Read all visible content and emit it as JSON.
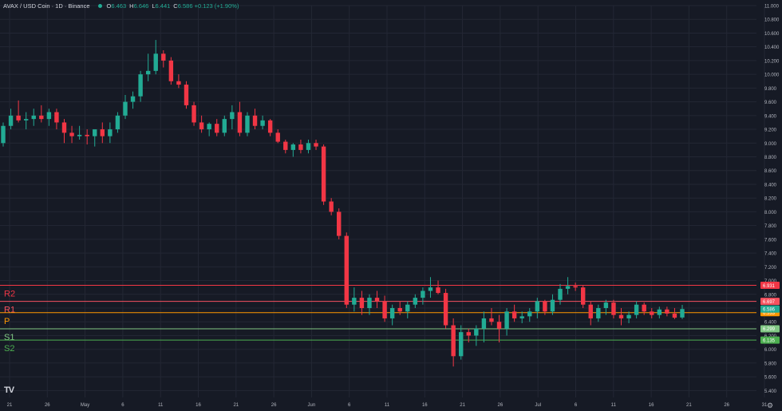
{
  "header": {
    "symbol": "AVAX / USD Coin · 1D · Binance",
    "o_label": "O",
    "o_value": "6.463",
    "h_label": "H",
    "h_value": "6.646",
    "l_label": "L",
    "l_value": "6.441",
    "c_label": "C",
    "c_value": "6.586 +0.123 (+1.90%)"
  },
  "icons": {
    "logo": "tradingview-logo-icon",
    "settings": "gear-icon"
  },
  "logo_text": "TV",
  "colors": {
    "up": "#22ab94",
    "down": "#f23645",
    "background": "#161a25",
    "grid": "#232734",
    "text": "#b2b5be"
  },
  "chart_data": {
    "type": "candlestick",
    "ylim": [
      5.3,
      11.0
    ],
    "y_ticks": [
      "11.000",
      "10.800",
      "10.600",
      "10.400",
      "10.200",
      "10.000",
      "9.800",
      "9.600",
      "9.400",
      "9.200",
      "9.000",
      "8.800",
      "8.600",
      "8.400",
      "8.200",
      "8.000",
      "7.800",
      "7.600",
      "7.400",
      "7.200",
      "7.000",
      "6.800",
      "6.600",
      "6.400",
      "6.200",
      "6.000",
      "5.800",
      "5.600",
      "5.400"
    ],
    "x_ticks": [
      "21",
      "26",
      "May",
      "6",
      "11",
      "16",
      "21",
      "26",
      "Jun",
      "6",
      "11",
      "16",
      "21",
      "26",
      "Jul",
      "6",
      "11",
      "16",
      "21",
      "26",
      "31"
    ],
    "levels": [
      {
        "label": "R2",
        "value": 6.931,
        "value_text": "6.931",
        "color": "#f23645"
      },
      {
        "label": "R1",
        "value": 6.697,
        "value_text": "6.697",
        "color": "#f7525f"
      },
      {
        "label": "P",
        "value": 6.533,
        "value_text": "6.533",
        "color": "#ff9800"
      },
      {
        "label": "S1",
        "value": 6.299,
        "value_text": "6.299",
        "color": "#81c784"
      },
      {
        "label": "S2",
        "value": 6.135,
        "value_text": "6.135",
        "color": "#4caf50"
      }
    ],
    "last_price": {
      "value": 6.586,
      "value_text": "6.586"
    },
    "candles": [
      {
        "o": 9.0,
        "h": 9.3,
        "l": 8.95,
        "c": 9.25
      },
      {
        "o": 9.25,
        "h": 9.5,
        "l": 9.2,
        "c": 9.4
      },
      {
        "o": 9.4,
        "h": 9.62,
        "l": 9.3,
        "c": 9.33
      },
      {
        "o": 9.33,
        "h": 9.45,
        "l": 9.2,
        "c": 9.35
      },
      {
        "o": 9.35,
        "h": 9.5,
        "l": 9.25,
        "c": 9.4
      },
      {
        "o": 9.4,
        "h": 9.55,
        "l": 9.3,
        "c": 9.35
      },
      {
        "o": 9.35,
        "h": 9.5,
        "l": 9.25,
        "c": 9.45
      },
      {
        "o": 9.45,
        "h": 9.5,
        "l": 9.2,
        "c": 9.3
      },
      {
        "o": 9.3,
        "h": 9.35,
        "l": 9.0,
        "c": 9.15
      },
      {
        "o": 9.15,
        "h": 9.25,
        "l": 9.0,
        "c": 9.1
      },
      {
        "o": 9.1,
        "h": 9.25,
        "l": 9.05,
        "c": 9.12
      },
      {
        "o": 9.12,
        "h": 9.2,
        "l": 8.98,
        "c": 9.1
      },
      {
        "o": 9.1,
        "h": 9.2,
        "l": 8.95,
        "c": 9.2
      },
      {
        "o": 9.2,
        "h": 9.3,
        "l": 9.0,
        "c": 9.1
      },
      {
        "o": 9.1,
        "h": 9.3,
        "l": 9.0,
        "c": 9.2
      },
      {
        "o": 9.2,
        "h": 9.45,
        "l": 9.15,
        "c": 9.4
      },
      {
        "o": 9.4,
        "h": 9.7,
        "l": 9.35,
        "c": 9.6
      },
      {
        "o": 9.6,
        "h": 9.75,
        "l": 9.5,
        "c": 9.68
      },
      {
        "o": 9.68,
        "h": 10.05,
        "l": 9.6,
        "c": 10.0
      },
      {
        "o": 10.0,
        "h": 10.3,
        "l": 9.9,
        "c": 10.05
      },
      {
        "o": 10.05,
        "h": 10.5,
        "l": 10.0,
        "c": 10.3
      },
      {
        "o": 10.3,
        "h": 10.35,
        "l": 10.1,
        "c": 10.2
      },
      {
        "o": 10.2,
        "h": 10.25,
        "l": 9.85,
        "c": 9.9
      },
      {
        "o": 9.9,
        "h": 10.0,
        "l": 9.8,
        "c": 9.85
      },
      {
        "o": 9.85,
        "h": 9.9,
        "l": 9.5,
        "c": 9.55
      },
      {
        "o": 9.55,
        "h": 9.6,
        "l": 9.25,
        "c": 9.3
      },
      {
        "o": 9.3,
        "h": 9.4,
        "l": 9.15,
        "c": 9.2
      },
      {
        "o": 9.2,
        "h": 9.3,
        "l": 9.1,
        "c": 9.28
      },
      {
        "o": 9.28,
        "h": 9.35,
        "l": 9.1,
        "c": 9.15
      },
      {
        "o": 9.15,
        "h": 9.4,
        "l": 9.1,
        "c": 9.35
      },
      {
        "o": 9.35,
        "h": 9.55,
        "l": 9.2,
        "c": 9.45
      },
      {
        "o": 9.45,
        "h": 9.6,
        "l": 9.1,
        "c": 9.15
      },
      {
        "o": 9.15,
        "h": 9.45,
        "l": 9.1,
        "c": 9.4
      },
      {
        "o": 9.4,
        "h": 9.5,
        "l": 9.2,
        "c": 9.25
      },
      {
        "o": 9.25,
        "h": 9.4,
        "l": 9.2,
        "c": 9.33
      },
      {
        "o": 9.33,
        "h": 9.35,
        "l": 9.1,
        "c": 9.15
      },
      {
        "o": 9.15,
        "h": 9.2,
        "l": 9.0,
        "c": 9.02
      },
      {
        "o": 9.02,
        "h": 9.05,
        "l": 8.85,
        "c": 8.9
      },
      {
        "o": 8.9,
        "h": 9.0,
        "l": 8.8,
        "c": 8.98
      },
      {
        "o": 8.98,
        "h": 9.05,
        "l": 8.85,
        "c": 8.9
      },
      {
        "o": 8.9,
        "h": 9.05,
        "l": 8.85,
        "c": 9.0
      },
      {
        "o": 9.0,
        "h": 9.05,
        "l": 8.9,
        "c": 8.95
      },
      {
        "o": 8.95,
        "h": 8.98,
        "l": 8.1,
        "c": 8.15
      },
      {
        "o": 8.15,
        "h": 8.2,
        "l": 7.95,
        "c": 8.0
      },
      {
        "o": 8.0,
        "h": 8.05,
        "l": 7.6,
        "c": 7.65
      },
      {
        "o": 7.65,
        "h": 7.7,
        "l": 6.6,
        "c": 6.65
      },
      {
        "o": 6.65,
        "h": 6.9,
        "l": 6.55,
        "c": 6.75
      },
      {
        "o": 6.75,
        "h": 6.85,
        "l": 6.5,
        "c": 6.6
      },
      {
        "o": 6.6,
        "h": 6.8,
        "l": 6.5,
        "c": 6.75
      },
      {
        "o": 6.75,
        "h": 6.85,
        "l": 6.6,
        "c": 6.7
      },
      {
        "o": 6.7,
        "h": 6.78,
        "l": 6.4,
        "c": 6.45
      },
      {
        "o": 6.45,
        "h": 6.65,
        "l": 6.35,
        "c": 6.6
      },
      {
        "o": 6.6,
        "h": 6.7,
        "l": 6.5,
        "c": 6.55
      },
      {
        "o": 6.55,
        "h": 6.7,
        "l": 6.45,
        "c": 6.65
      },
      {
        "o": 6.65,
        "h": 6.8,
        "l": 6.6,
        "c": 6.75
      },
      {
        "o": 6.75,
        "h": 6.9,
        "l": 6.65,
        "c": 6.85
      },
      {
        "o": 6.85,
        "h": 7.05,
        "l": 6.75,
        "c": 6.9
      },
      {
        "o": 6.9,
        "h": 7.0,
        "l": 6.8,
        "c": 6.82
      },
      {
        "o": 6.82,
        "h": 6.88,
        "l": 6.3,
        "c": 6.35
      },
      {
        "o": 6.35,
        "h": 6.45,
        "l": 5.75,
        "c": 5.9
      },
      {
        "o": 5.9,
        "h": 6.35,
        "l": 5.85,
        "c": 6.25
      },
      {
        "o": 6.25,
        "h": 6.3,
        "l": 6.1,
        "c": 6.2
      },
      {
        "o": 6.2,
        "h": 6.35,
        "l": 6.05,
        "c": 6.3
      },
      {
        "o": 6.3,
        "h": 6.55,
        "l": 6.1,
        "c": 6.45
      },
      {
        "o": 6.45,
        "h": 6.6,
        "l": 6.35,
        "c": 6.4
      },
      {
        "o": 6.4,
        "h": 6.5,
        "l": 6.1,
        "c": 6.3
      },
      {
        "o": 6.3,
        "h": 6.6,
        "l": 6.2,
        "c": 6.55
      },
      {
        "o": 6.55,
        "h": 6.65,
        "l": 6.4,
        "c": 6.45
      },
      {
        "o": 6.45,
        "h": 6.55,
        "l": 6.38,
        "c": 6.48
      },
      {
        "o": 6.48,
        "h": 6.6,
        "l": 6.4,
        "c": 6.55
      },
      {
        "o": 6.55,
        "h": 6.75,
        "l": 6.45,
        "c": 6.7
      },
      {
        "o": 6.7,
        "h": 6.72,
        "l": 6.5,
        "c": 6.55
      },
      {
        "o": 6.55,
        "h": 6.8,
        "l": 6.5,
        "c": 6.72
      },
      {
        "o": 6.72,
        "h": 6.95,
        "l": 6.65,
        "c": 6.88
      },
      {
        "o": 6.88,
        "h": 7.05,
        "l": 6.8,
        "c": 6.92
      },
      {
        "o": 6.92,
        "h": 6.97,
        "l": 6.85,
        "c": 6.9
      },
      {
        "o": 6.9,
        "h": 6.93,
        "l": 6.6,
        "c": 6.65
      },
      {
        "o": 6.65,
        "h": 6.7,
        "l": 6.35,
        "c": 6.45
      },
      {
        "o": 6.45,
        "h": 6.65,
        "l": 6.4,
        "c": 6.6
      },
      {
        "o": 6.6,
        "h": 6.72,
        "l": 6.5,
        "c": 6.68
      },
      {
        "o": 6.68,
        "h": 6.72,
        "l": 6.45,
        "c": 6.5
      },
      {
        "o": 6.5,
        "h": 6.6,
        "l": 6.35,
        "c": 6.45
      },
      {
        "o": 6.45,
        "h": 6.55,
        "l": 6.38,
        "c": 6.5
      },
      {
        "o": 6.5,
        "h": 6.7,
        "l": 6.45,
        "c": 6.65
      },
      {
        "o": 6.65,
        "h": 6.68,
        "l": 6.5,
        "c": 6.55
      },
      {
        "o": 6.55,
        "h": 6.6,
        "l": 6.45,
        "c": 6.5
      },
      {
        "o": 6.5,
        "h": 6.62,
        "l": 6.45,
        "c": 6.58
      },
      {
        "o": 6.58,
        "h": 6.62,
        "l": 6.48,
        "c": 6.52
      },
      {
        "o": 6.52,
        "h": 6.6,
        "l": 6.44,
        "c": 6.46
      },
      {
        "o": 6.463,
        "h": 6.646,
        "l": 6.441,
        "c": 6.586
      }
    ]
  }
}
